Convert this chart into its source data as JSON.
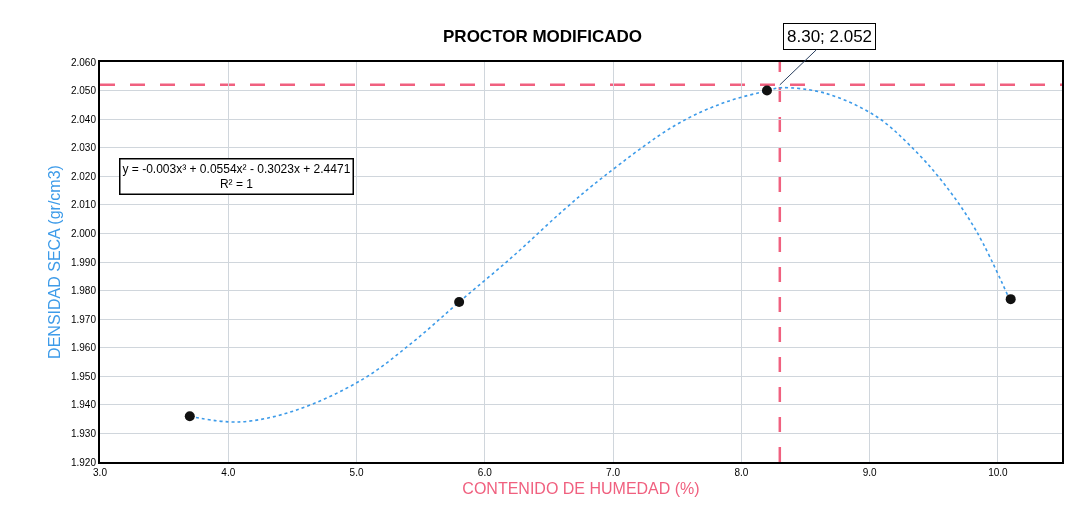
{
  "chart_data": {
    "type": "line",
    "title": "PROCTOR MODIFICADO",
    "xlabel": "CONTENIDO DE HUMEDAD (%)",
    "ylabel": "DENSIDAD SECA (gr/cm3)",
    "series": [
      {
        "color": "#3d9be9",
        "marker": "none",
        "line_style": "dotted",
        "x": [
          3.7,
          4.08,
          4.52,
          5.05,
          5.44,
          5.8,
          6.22,
          6.61,
          6.93,
          7.49,
          7.88,
          8.21,
          8.31,
          8.66,
          9.05,
          9.31,
          9.57,
          9.83,
          10.09
        ],
        "values": [
          1.936,
          1.934,
          1.938,
          1.949,
          1.962,
          1.976,
          1.992,
          2.008,
          2.02,
          2.038,
          2.046,
          2.05,
          2.051,
          2.049,
          2.041,
          2.031,
          2.018,
          2.001,
          1.977
        ]
      },
      {
        "type": "scatter",
        "color": "#111111",
        "marker": "circle",
        "x": [
          3.7,
          5.8,
          8.2,
          10.1
        ],
        "values": [
          1.936,
          1.976,
          2.05,
          1.977
        ]
      }
    ],
    "xlim": [
      3.0,
      10.5
    ],
    "xticks": [
      {
        "value": 3,
        "label": "3.0"
      },
      {
        "value": 4,
        "label": "4.0"
      },
      {
        "value": 5,
        "label": "5.0"
      },
      {
        "value": 6,
        "label": "6.0"
      },
      {
        "value": 7,
        "label": "7.0"
      },
      {
        "value": 8,
        "label": "8.0"
      },
      {
        "value": 9,
        "label": "9.0"
      },
      {
        "value": 10,
        "label": "10.0"
      }
    ],
    "ylim": [
      1.92,
      2.06
    ],
    "yticks": [
      {
        "value": 1.92,
        "label": "1.920"
      },
      {
        "value": 1.93,
        "label": "1.930"
      },
      {
        "value": 1.94,
        "label": "1.940"
      },
      {
        "value": 1.95,
        "label": "1.950"
      },
      {
        "value": 1.96,
        "label": "1.960"
      },
      {
        "value": 1.97,
        "label": "1.970"
      },
      {
        "value": 1.98,
        "label": "1.980"
      },
      {
        "value": 1.99,
        "label": "1.990"
      },
      {
        "value": 2.0,
        "label": "2.000"
      },
      {
        "value": 2.01,
        "label": "2.010"
      },
      {
        "value": 2.02,
        "label": "2.020"
      },
      {
        "value": 2.03,
        "label": "2.030"
      },
      {
        "value": 2.04,
        "label": "2.040"
      },
      {
        "value": 2.05,
        "label": "2.050"
      },
      {
        "value": 2.06,
        "label": "2.060"
      }
    ],
    "ref_lines": [
      {
        "axis": "y",
        "value": 2.052,
        "color": "#f0607f",
        "line_style": "dashed"
      },
      {
        "axis": "x",
        "value": 8.3,
        "color": "#f0607f",
        "line_style": "dashed"
      }
    ],
    "annotations": [
      {
        "text": "8.30; 2.052",
        "x": 8.3,
        "y": 2.052
      },
      "y = -0.003x³ + 0.0554x² - 0.3023x + 2.4471\nR² = 1"
    ],
    "grid": true
  }
}
